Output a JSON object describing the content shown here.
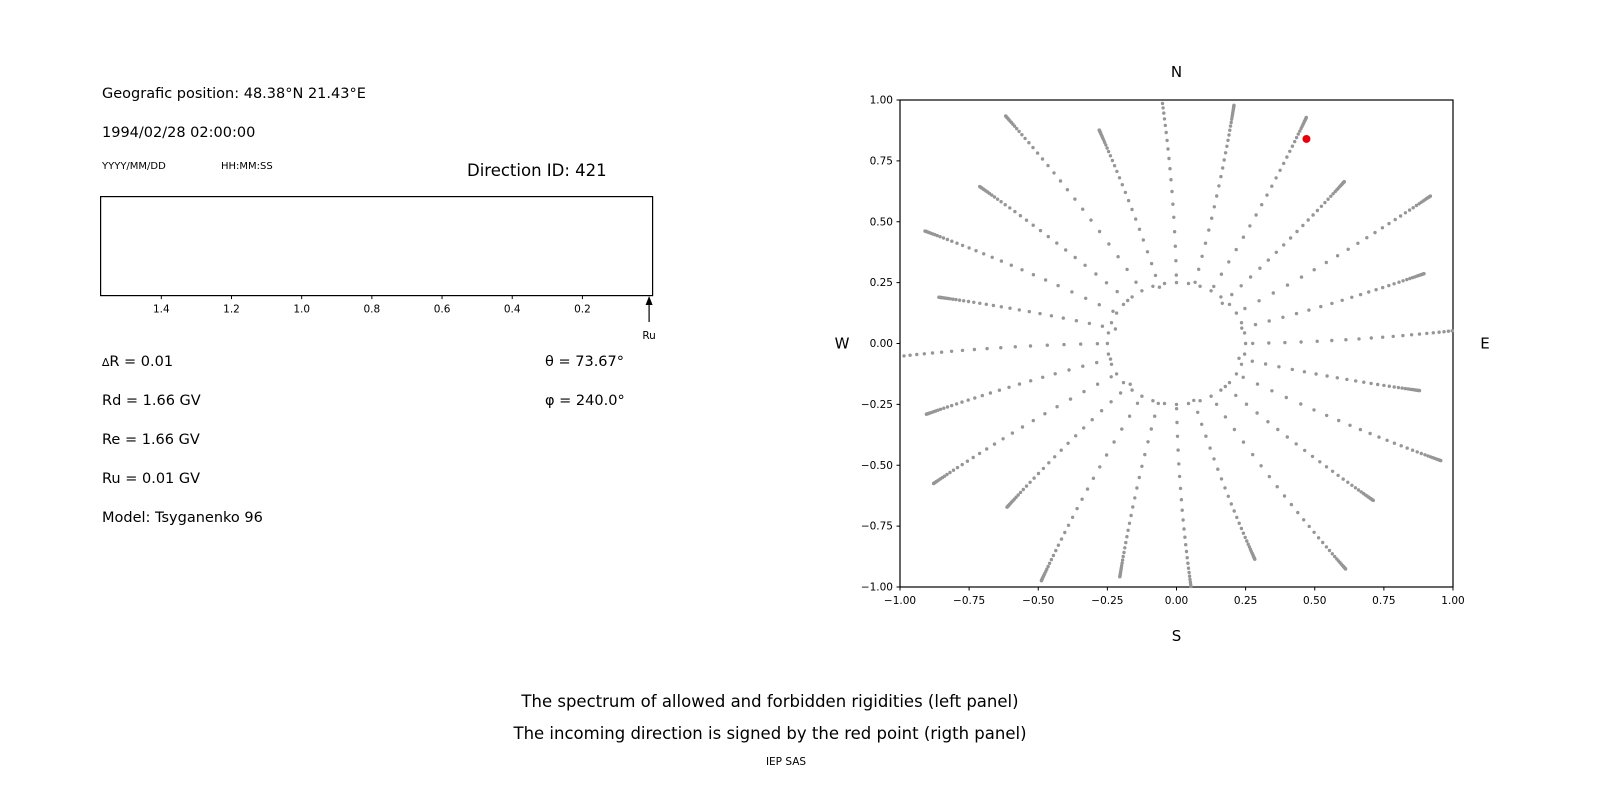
{
  "colors": {
    "axis": "#000000",
    "dot_gray": "#969696",
    "highlight_red": "#e8000b",
    "background": "#ffffff"
  },
  "info": {
    "position": "Geografic position: 48.38°N 21.43°E",
    "datetime": "1994/02/28 02:00:00",
    "date_format": "YYYY/MM/DD",
    "time_format": "HH:MM:SS",
    "direction_id": "Direction ID: 421",
    "delta_symbol": "∆",
    "delta_r": "R = 0.01",
    "rd": "Rd = 1.66 GV",
    "re": "Re = 1.66 GV",
    "ru": "Ru = 0.01 GV",
    "model": "Model: Tsyganenko 96",
    "theta": "θ = 73.67°",
    "phi": "φ = 240.0°"
  },
  "caption": {
    "line1": "The spectrum of allowed and forbidden rigidities (left panel)",
    "line2": "The incoming direction is signed by the red point (rigth panel)",
    "credit": "IEP SAS"
  },
  "chart_data": [
    {
      "type": "scatter",
      "name": "rigidity-spectrum",
      "description": "Empty spectrum box of allowed/forbidden rigidities; rigidity in GV decreases left to right; upward arrow below right end marks Ru = 0.01 GV.",
      "xlim": [
        1.573,
        0.0
      ],
      "x_tick_values": [
        1.4,
        1.2,
        1.0,
        0.8,
        0.6,
        0.4,
        0.2
      ],
      "x_tick_labels": [
        "1.4",
        "1.2",
        "1.0",
        "0.8",
        "0.6",
        "0.4",
        "0.2"
      ],
      "arrow_value": 0.01,
      "arrow_label": "Ru",
      "series": []
    },
    {
      "type": "scatter",
      "name": "incoming-direction-map",
      "description": "Sky map of asymptotic viewing directions: small gray dots arranged as 24 radial spokes around an inner dotted ring; incoming direction marked by red point.",
      "xlim": [
        -1.0,
        1.0
      ],
      "ylim": [
        -1.0,
        1.0
      ],
      "x_tick_values": [
        -1.0,
        -0.75,
        -0.5,
        -0.25,
        0.0,
        0.25,
        0.5,
        0.75,
        1.0
      ],
      "x_tick_labels": [
        "−1.00",
        "−0.75",
        "−0.50",
        "−0.25",
        "0.00",
        "0.25",
        "0.50",
        "0.75",
        "1.00"
      ],
      "y_tick_values": [
        1.0,
        0.75,
        0.5,
        0.25,
        0.0,
        -0.25,
        -0.5,
        -0.75,
        -1.0
      ],
      "y_tick_labels": [
        "1.00",
        "0.75",
        "0.50",
        "0.25",
        "0.00",
        "−0.25",
        "−0.50",
        "−0.75",
        "−1.00"
      ],
      "compass": {
        "top": "N",
        "bottom": "S",
        "left": "W",
        "right": "E"
      },
      "point_color": "#969696",
      "highlight_point": {
        "x": 0.47,
        "y": 0.84,
        "color": "#e8000b"
      },
      "pattern": {
        "description": "radial spokes of small gray dots, dots cluster toward spoke tips, inner dotted ring at r=0.25, slight pinwheel twist",
        "num_spokes": 24,
        "start_angle_deg": 0,
        "step_deg": 15,
        "twist_deg_per_unit_r": 4,
        "inner_ring_radius": 0.25,
        "inner_ring_points": 36,
        "radii": [
          0.26,
          0.315,
          0.37,
          0.425,
          0.48,
          0.53,
          0.578,
          0.623,
          0.665,
          0.704,
          0.74,
          0.773,
          0.803,
          0.83,
          0.855,
          0.877,
          0.897,
          0.914,
          0.929,
          0.942,
          0.953,
          0.962,
          0.97,
          0.977,
          0.983,
          0.988,
          0.992,
          0.995,
          0.998,
          1.0
        ],
        "spoke_lengths": [
          1.06,
          0.94,
          1.1,
          0.9,
          1.04,
          1.0,
          1.08,
          0.92,
          1.12,
          0.96,
          1.02,
          0.88,
          1.1,
          0.95,
          1.05,
          0.91,
          1.09,
          0.98,
          1.03,
          0.93,
          1.11,
          0.96,
          1.07,
          0.9
        ]
      }
    }
  ]
}
